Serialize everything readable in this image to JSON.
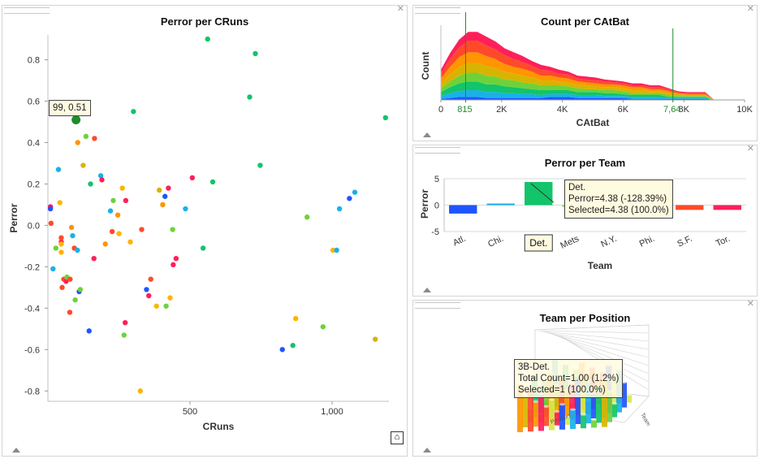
{
  "window": {
    "close_glyph": "✕"
  },
  "scatter_panel": {
    "title": "Perror per CRuns",
    "xlabel": "CRuns",
    "ylabel": "Perror",
    "tooltip": "99, 0.51",
    "home_glyph": "⌂"
  },
  "area_panel": {
    "title": "Count per CAtBat",
    "xlabel": "CAtBat",
    "ylabel": "Count",
    "marker_labels": [
      "815",
      "7,64"
    ]
  },
  "bar_panel": {
    "title": "Perror per Team",
    "xlabel": "Team",
    "ylabel": "Perror",
    "highlight_label": "Det.",
    "tooltip": [
      "Det.",
      "Perror=4.38 (-128.39%)",
      "Selected=4.38 (100.0%)"
    ]
  },
  "bar3d_panel": {
    "title": "Team per Position",
    "tooltip": [
      "3B-Det.",
      "Total Count=1.00 (1.2%)",
      "Selected=1 (100.0%)"
    ],
    "axis_texts": [
      "Position",
      "Team"
    ],
    "bar_colors": [
      "#1f55ff",
      "#1ab1e8",
      "#12c46a",
      "#6fd13a",
      "#d8b400",
      "#ff9500",
      "#ff4a2a",
      "#ff1f5a",
      "#d7e84a"
    ]
  },
  "chart_data": [
    {
      "type": "scatter",
      "title": "Perror per CRuns",
      "xlabel": "CRuns",
      "ylabel": "Perror",
      "xlim": [
        0,
        1200
      ],
      "ylim": [
        -0.85,
        0.92
      ],
      "xticks": [
        500,
        1000
      ],
      "xtick_labels": [
        "500",
        "1,000"
      ],
      "yticks": [
        0.8,
        0.6,
        0.4,
        0.2,
        0.0,
        -0.2,
        -0.4,
        -0.6,
        -0.8
      ],
      "ytick_labels": [
        "0.8",
        "0.6",
        "0.4",
        "0.2",
        "0.0",
        "-0.2",
        "-0.4",
        "-0.6",
        "-0.8"
      ],
      "highlight": {
        "x": 99,
        "y": 0.51,
        "color": "#1e8c2a"
      },
      "points": [
        [
          9,
          0.09,
          "#ff1f5a"
        ],
        [
          9,
          0.08,
          "#1f55ff"
        ],
        [
          11,
          0.01,
          "#ff4a2a"
        ],
        [
          18,
          -0.21,
          "#1ab1e8"
        ],
        [
          28,
          -0.11,
          "#6fd13a"
        ],
        [
          37,
          0.27,
          "#1ab1e8"
        ],
        [
          42,
          0.11,
          "#ffb400"
        ],
        [
          47,
          -0.08,
          "#ff1f5a"
        ],
        [
          47,
          -0.06,
          "#ff4a2a"
        ],
        [
          47,
          -0.09,
          "#ffb400"
        ],
        [
          47,
          -0.13,
          "#ffb400"
        ],
        [
          50,
          -0.3,
          "#ff4a2a"
        ],
        [
          56,
          -0.26,
          "#ff4a2a"
        ],
        [
          64,
          -0.27,
          "#ff1f5a"
        ],
        [
          67,
          -0.25,
          "#6fd13a"
        ],
        [
          78,
          -0.26,
          "#ff4a2a"
        ],
        [
          77,
          -0.42,
          "#ff4a2a"
        ],
        [
          83,
          -0.01,
          "#ff9500"
        ],
        [
          87,
          -0.05,
          "#1ab1e8"
        ],
        [
          93,
          -0.11,
          "#ff4a2a"
        ],
        [
          96,
          -0.36,
          "#6fd13a"
        ],
        [
          104,
          -0.12,
          "#1ab1e8"
        ],
        [
          105,
          0.4,
          "#ff9500"
        ],
        [
          110,
          -0.32,
          "#1f55ff"
        ],
        [
          114,
          -0.31,
          "#6fd13a"
        ],
        [
          124,
          0.29,
          "#d8b400"
        ],
        [
          134,
          0.43,
          "#6fd13a"
        ],
        [
          150,
          0.2,
          "#12c46a"
        ],
        [
          145,
          -0.51,
          "#1f55ff"
        ],
        [
          164,
          0.42,
          "#ff4a2a"
        ],
        [
          162,
          -0.16,
          "#ff1f5a"
        ],
        [
          186,
          0.24,
          "#1ab1e8"
        ],
        [
          190,
          0.22,
          "#ff1f5a"
        ],
        [
          202,
          -0.09,
          "#ff9500"
        ],
        [
          220,
          0.07,
          "#1ab1e8"
        ],
        [
          226,
          -0.03,
          "#ff4a2a"
        ],
        [
          230,
          0.12,
          "#6fd13a"
        ],
        [
          246,
          0.05,
          "#ff9500"
        ],
        [
          250,
          -0.04,
          "#ffb400"
        ],
        [
          262,
          0.18,
          "#ffb400"
        ],
        [
          268,
          -0.53,
          "#6fd13a"
        ],
        [
          272,
          -0.47,
          "#ff1f5a"
        ],
        [
          274,
          0.12,
          "#ff1f5a"
        ],
        [
          290,
          -0.08,
          "#ffb400"
        ],
        [
          301,
          0.55,
          "#12c46a"
        ],
        [
          325,
          -0.8,
          "#ffb400"
        ],
        [
          330,
          -0.02,
          "#ff4a2a"
        ],
        [
          347,
          -0.31,
          "#1f55ff"
        ],
        [
          355,
          -0.34,
          "#ff1f5a"
        ],
        [
          362,
          -0.26,
          "#ff4a2a"
        ],
        [
          382,
          -0.39,
          "#ffb400"
        ],
        [
          392,
          0.17,
          "#d8b400"
        ],
        [
          404,
          0.1,
          "#ff9500"
        ],
        [
          412,
          0.14,
          "#1f55ff"
        ],
        [
          416,
          -0.39,
          "#6fd13a"
        ],
        [
          424,
          0.18,
          "#ff1f5a"
        ],
        [
          430,
          -0.35,
          "#ffb400"
        ],
        [
          439,
          -0.02,
          "#6fd13a"
        ],
        [
          441,
          -0.19,
          "#ff1f5a"
        ],
        [
          451,
          -0.16,
          "#ff1f5a"
        ],
        [
          484,
          0.08,
          "#1ab1e8"
        ],
        [
          508,
          0.23,
          "#ff1f5a"
        ],
        [
          546,
          -0.11,
          "#12c46a"
        ],
        [
          562,
          0.9,
          "#12c46a"
        ],
        [
          580,
          0.21,
          "#12c46a"
        ],
        [
          710,
          0.62,
          "#12c46a"
        ],
        [
          730,
          0.83,
          "#12c46a"
        ],
        [
          747,
          0.29,
          "#12c46a"
        ],
        [
          825,
          -0.6,
          "#1f55ff"
        ],
        [
          862,
          -0.58,
          "#12c46a"
        ],
        [
          872,
          -0.45,
          "#ffb400"
        ],
        [
          912,
          0.04,
          "#6fd13a"
        ],
        [
          968,
          -0.49,
          "#6fd13a"
        ],
        [
          1003,
          -0.12,
          "#ffb400"
        ],
        [
          1016,
          -0.12,
          "#1ab1e8"
        ],
        [
          1026,
          0.08,
          "#1ab1e8"
        ],
        [
          1061,
          0.13,
          "#1f55ff"
        ],
        [
          1080,
          0.16,
          "#1ab1e8"
        ],
        [
          1152,
          -0.55,
          "#d8b400"
        ],
        [
          1188,
          0.52,
          "#12c46a"
        ]
      ]
    },
    {
      "type": "area",
      "title": "Count per CAtBat",
      "xlabel": "CAtBat",
      "ylabel": "Count",
      "xlim": [
        0,
        10000
      ],
      "xticks": [
        0,
        2000,
        4000,
        6000,
        8000,
        10000
      ],
      "xtick_labels": [
        "0",
        "2K",
        "4K",
        "6K",
        "8K",
        "10K"
      ],
      "markers": [
        815,
        7640
      ],
      "x": [
        0,
        300,
        600,
        900,
        1200,
        1500,
        1800,
        2100,
        2400,
        2700,
        3000,
        3300,
        3600,
        3900,
        4200,
        4500,
        4800,
        5100,
        5400,
        5700,
        6000,
        6300,
        6600,
        6900,
        7200,
        7500,
        7800,
        8100,
        8400,
        8700,
        9000
      ],
      "series": [
        {
          "color": "#1f55ff",
          "values": [
            1,
            2,
            3,
            3,
            3,
            2,
            2,
            2,
            2,
            2,
            2,
            2,
            3,
            3,
            3,
            2,
            2,
            2,
            2,
            2,
            2,
            1,
            1,
            1,
            1,
            1,
            1,
            1,
            1,
            1,
            0
          ]
        },
        {
          "color": "#1ab1e8",
          "values": [
            3,
            5,
            6,
            7,
            7,
            6,
            6,
            5,
            5,
            4,
            4,
            3,
            3,
            3,
            3,
            3,
            3,
            3,
            2,
            2,
            2,
            2,
            2,
            2,
            2,
            1,
            1,
            1,
            1,
            1,
            0
          ]
        },
        {
          "color": "#12c46a",
          "values": [
            4,
            6,
            8,
            9,
            9,
            8,
            8,
            7,
            6,
            6,
            5,
            5,
            4,
            4,
            4,
            3,
            3,
            3,
            3,
            3,
            2,
            2,
            2,
            2,
            2,
            1,
            1,
            1,
            1,
            1,
            0
          ]
        },
        {
          "color": "#6fd13a",
          "values": [
            4,
            6,
            8,
            9,
            9,
            9,
            8,
            7,
            7,
            6,
            6,
            5,
            5,
            5,
            4,
            4,
            3,
            3,
            3,
            3,
            3,
            2,
            2,
            2,
            2,
            2,
            1,
            1,
            1,
            1,
            0
          ]
        },
        {
          "color": "#d8b400",
          "values": [
            5,
            7,
            9,
            10,
            10,
            10,
            9,
            8,
            7,
            7,
            6,
            5,
            5,
            4,
            4,
            4,
            4,
            3,
            3,
            3,
            3,
            3,
            3,
            2,
            2,
            2,
            2,
            1,
            1,
            1,
            0
          ]
        },
        {
          "color": "#ff9500",
          "values": [
            5,
            8,
            10,
            11,
            11,
            10,
            9,
            8,
            7,
            7,
            6,
            5,
            5,
            4,
            4,
            3,
            3,
            3,
            3,
            3,
            3,
            3,
            3,
            2,
            2,
            2,
            1,
            1,
            1,
            1,
            0
          ]
        },
        {
          "color": "#ff4a2a",
          "values": [
            5,
            8,
            10,
            12,
            12,
            11,
            10,
            9,
            8,
            7,
            6,
            6,
            5,
            4,
            4,
            3,
            3,
            3,
            3,
            2,
            2,
            2,
            2,
            2,
            2,
            2,
            1,
            1,
            1,
            1,
            0
          ]
        },
        {
          "color": "#ff1f5a",
          "values": [
            4,
            6,
            8,
            9,
            9,
            9,
            8,
            7,
            7,
            6,
            5,
            5,
            4,
            4,
            3,
            3,
            3,
            3,
            2,
            2,
            2,
            2,
            2,
            2,
            2,
            1,
            1,
            1,
            1,
            1,
            0
          ]
        }
      ]
    },
    {
      "type": "bar",
      "title": "Perror per Team",
      "xlabel": "Team",
      "ylabel": "Perror",
      "ylim": [
        -5,
        5
      ],
      "yticks": [
        5,
        0,
        -5
      ],
      "categories": [
        "Atl.",
        "Chi.",
        "Det.",
        "Mets",
        "N.Y.",
        "Phi.",
        "S.F.",
        "Tor."
      ],
      "values": [
        -1.6,
        0.3,
        4.38,
        -0.05,
        0.0,
        0.0,
        -0.9,
        -0.9
      ],
      "colors": [
        "#1f55ff",
        "#1ab1e8",
        "#12c46a",
        "#6fd13a",
        "#d8b400",
        "#ff9500",
        "#ff4a2a",
        "#ff1f5a"
      ],
      "selected": "Det."
    }
  ]
}
